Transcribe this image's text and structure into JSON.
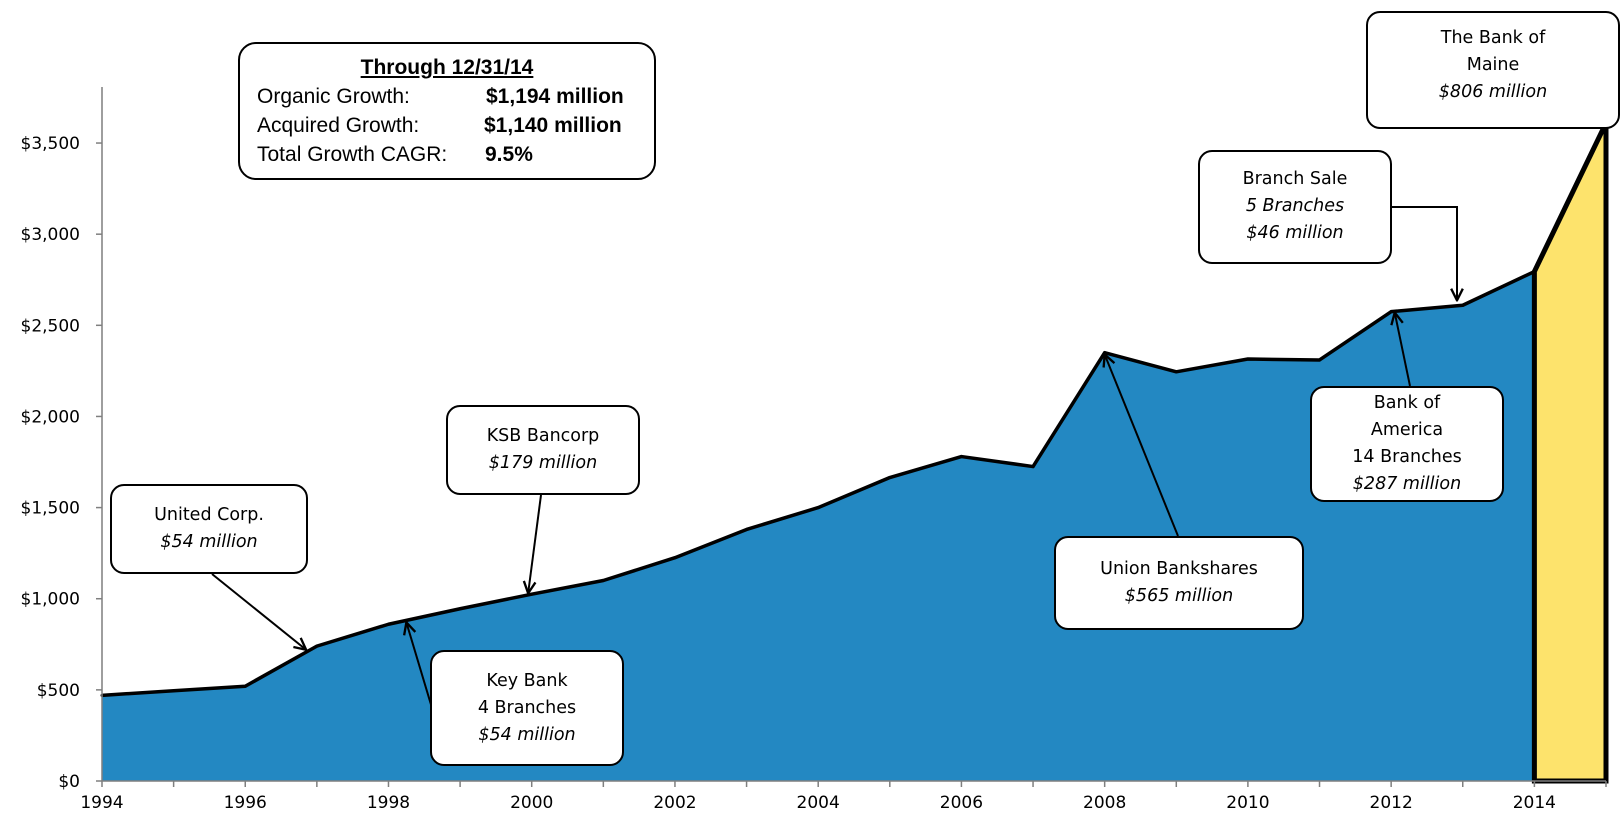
{
  "chart_data": {
    "type": "area",
    "x": [
      1994,
      1995,
      1996,
      1997,
      1998,
      1999,
      2000,
      2001,
      2002,
      2003,
      2004,
      2005,
      2006,
      2007,
      2008,
      2009,
      2010,
      2011,
      2012,
      2013,
      2014,
      2015
    ],
    "series": [
      {
        "values": [
          470,
          495,
          520,
          740,
          860,
          945,
          1025,
          1100,
          1225,
          1380,
          1500,
          1665,
          1780,
          1725,
          2350,
          2245,
          2315,
          2310,
          2575,
          2610,
          2795,
          3610
        ],
        "color": "#2388c2"
      }
    ],
    "highlight": {
      "from_x": 2014,
      "to_x": 2015,
      "color": "#fde36c"
    },
    "xticks": [
      "1994",
      "1996",
      "1998",
      "2000",
      "2002",
      "2004",
      "2006",
      "2008",
      "2010",
      "2012",
      "2014"
    ],
    "xtick_values": [
      1994,
      1996,
      1998,
      2000,
      2002,
      2004,
      2006,
      2008,
      2010,
      2012,
      2014
    ],
    "yticks": [
      "$0",
      "$500",
      "$1,000",
      "$1,500",
      "$2,000",
      "$2,500",
      "$3,000",
      "$3,500"
    ],
    "ytick_values": [
      0,
      500,
      1000,
      1500,
      2000,
      2500,
      3000,
      3500
    ],
    "xlim": [
      1994,
      2015
    ],
    "ylim": [
      0,
      3780
    ],
    "title": "",
    "xlabel": "",
    "ylabel": "",
    "grid": false,
    "legend": "none"
  },
  "summary": {
    "title": "Through 12/31/14",
    "rows": [
      {
        "label": "Organic Growth:",
        "value": "$1,194 million"
      },
      {
        "label": "Acquired Growth:",
        "value": "$1,140 million"
      },
      {
        "label": "Total Growth CAGR:",
        "value": "9.5%"
      }
    ]
  },
  "annotations": [
    {
      "id": "united-corp",
      "lines": [
        "United Corp."
      ],
      "italic": "$54 million",
      "point_x": 1996.85,
      "point_y": 720
    },
    {
      "id": "key-bank",
      "lines": [
        "Key Bank",
        "4 Branches"
      ],
      "italic": "$54 million",
      "point_x": 1998.25,
      "point_y": 870
    },
    {
      "id": "ksb-bancorp",
      "lines": [
        "KSB Bancorp"
      ],
      "italic": "$179 million",
      "point_x": 1999.95,
      "point_y": 1030
    },
    {
      "id": "union-bankshares",
      "lines": [
        "Union Bankshares"
      ],
      "italic": "$565 million",
      "point_x": 2008.0,
      "point_y": 2340
    },
    {
      "id": "bank-of-america",
      "lines": [
        "Bank of",
        "America",
        "14 Branches"
      ],
      "italic": "$287 million",
      "point_x": 2012.05,
      "point_y": 2570
    },
    {
      "id": "branch-sale",
      "lines": [
        "Branch Sale"
      ],
      "italic_lines": [
        "5 Branches",
        "$46 million"
      ],
      "point_x": 2012.95,
      "point_y": 2615
    },
    {
      "id": "bank-of-maine",
      "lines": [
        "The Bank of",
        "Maine"
      ],
      "italic": "$806 million",
      "point_x": 2015,
      "point_y": 3600
    }
  ]
}
